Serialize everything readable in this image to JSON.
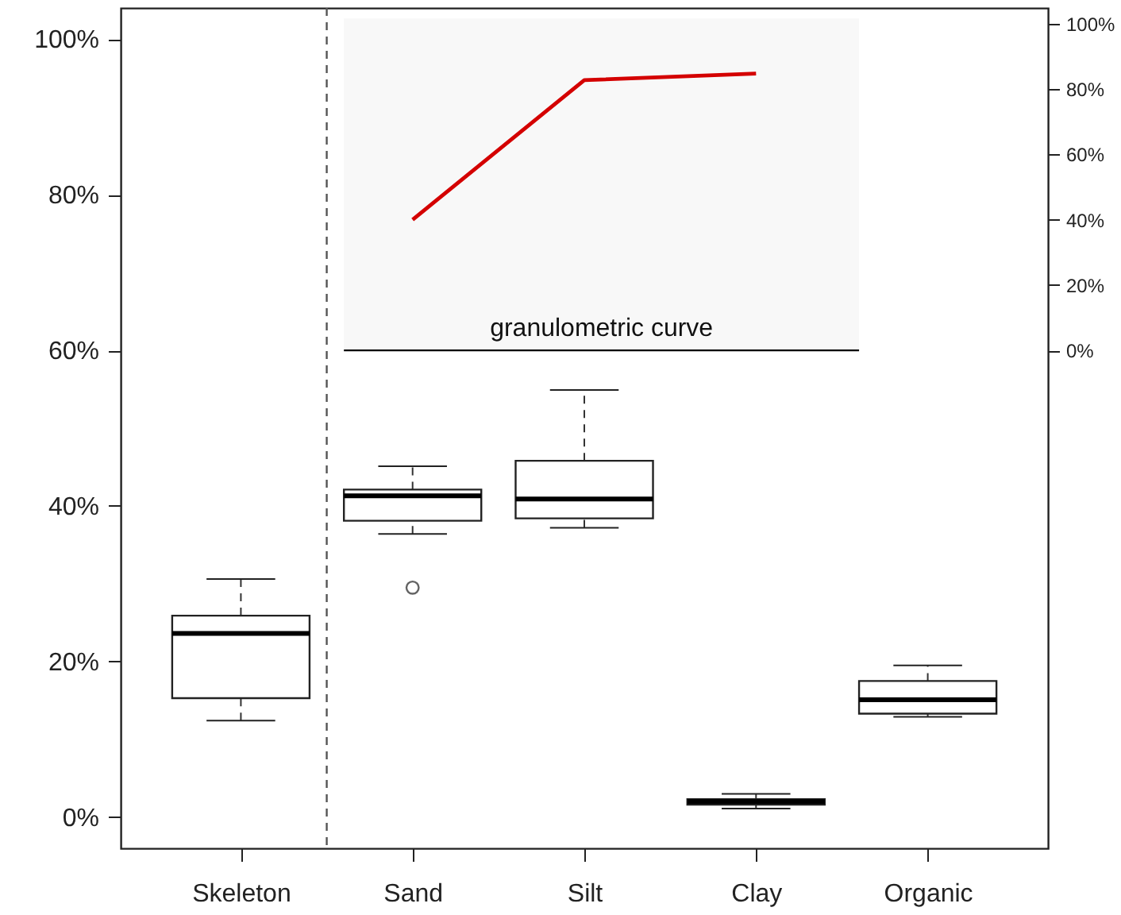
{
  "chart_data": {
    "type": "box",
    "categories": [
      "Skeleton",
      "Sand",
      "Silt",
      "Clay",
      "Organic"
    ],
    "boxes": [
      {
        "low": 12.4,
        "q1": 15.3,
        "median": 23.6,
        "q3": 25.9,
        "high": 30.6
      },
      {
        "low": 36.4,
        "q1": 38.1,
        "median": 41.3,
        "q3": 42.1,
        "high": 45.1,
        "outliers": [
          29.5
        ]
      },
      {
        "low": 37.2,
        "q1": 38.4,
        "median": 40.9,
        "q3": 45.8,
        "high": 54.9
      },
      {
        "low": 1.1,
        "q1": 1.6,
        "median": 2.0,
        "q3": 2.3,
        "high": 3.0
      },
      {
        "low": 12.9,
        "q1": 13.3,
        "median": 15.1,
        "q3": 17.5,
        "high": 19.5
      }
    ],
    "series": [
      {
        "type": "line",
        "axis": "y2",
        "x": [
          "Sand",
          "Silt",
          "Clay"
        ],
        "values": [
          40,
          82.7,
          84.7
        ],
        "color": "#d40000"
      }
    ],
    "ylim": [
      -4,
      104
    ],
    "yticks": [
      {
        "value": 0,
        "label": "0%"
      },
      {
        "value": 20,
        "label": "20%"
      },
      {
        "value": 40,
        "label": "40%"
      },
      {
        "value": 60,
        "label": "60%"
      },
      {
        "value": 80,
        "label": "80%"
      },
      {
        "value": 100,
        "label": "100%"
      }
    ],
    "y2lim": [
      -152.4,
      104.8
    ],
    "y2ticks": [
      {
        "value": 0,
        "label": "0%"
      },
      {
        "value": 20,
        "label": "20%"
      },
      {
        "value": 40,
        "label": "40%"
      },
      {
        "value": 60,
        "label": "60%"
      },
      {
        "value": 80,
        "label": "80%"
      },
      {
        "value": 100,
        "label": "100%"
      }
    ],
    "ref_lines": [
      {
        "axis": "y2",
        "value": 0,
        "color": "#000000"
      }
    ],
    "bands": [
      {
        "axis": "y2",
        "from": 0,
        "to": 101.6,
        "label": "granulometric curve",
        "color": "#f8f8f8"
      }
    ],
    "grid": false
  }
}
